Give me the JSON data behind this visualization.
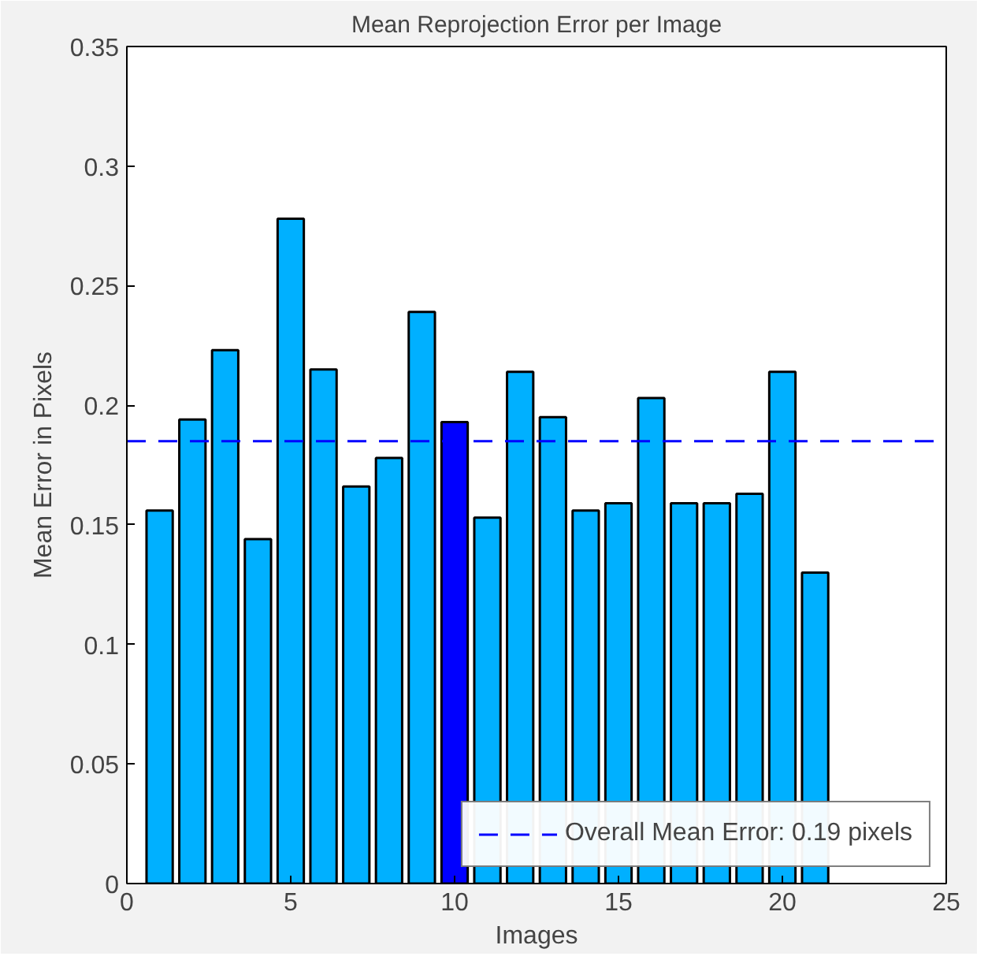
{
  "chart_data": {
    "type": "bar",
    "title": "Mean Reprojection Error per Image",
    "xlabel": "Images",
    "ylabel": "Mean Error in Pixels",
    "x": [
      1,
      2,
      3,
      4,
      5,
      6,
      7,
      8,
      9,
      10,
      11,
      12,
      13,
      14,
      15,
      16,
      17,
      18,
      19,
      20,
      21
    ],
    "values": [
      0.156,
      0.194,
      0.223,
      0.144,
      0.278,
      0.215,
      0.166,
      0.178,
      0.239,
      0.193,
      0.153,
      0.214,
      0.195,
      0.156,
      0.159,
      0.203,
      0.159,
      0.159,
      0.163,
      0.214,
      0.13
    ],
    "colors": [
      "#00b0ff",
      "#00b0ff",
      "#00b0ff",
      "#00b0ff",
      "#00b0ff",
      "#00b0ff",
      "#00b0ff",
      "#00b0ff",
      "#00b0ff",
      "#0000ff",
      "#00b0ff",
      "#00b0ff",
      "#00b0ff",
      "#00b0ff",
      "#00b0ff",
      "#00b0ff",
      "#00b0ff",
      "#00b0ff",
      "#00b0ff",
      "#00b0ff",
      "#00b0ff"
    ],
    "xlim": [
      0,
      25
    ],
    "xticks": [
      0,
      5,
      10,
      15,
      20,
      25
    ],
    "ylim": [
      0,
      0.35
    ],
    "yticks": [
      0,
      0.05,
      0.1,
      0.15,
      0.2,
      0.25,
      0.3,
      0.35
    ],
    "ref_lines": [
      {
        "axis": "y",
        "value": 0.185,
        "label": "Overall Mean Error: 0.19 pixels",
        "color": "#0000ff",
        "line_style": "dashed"
      }
    ],
    "legend": "bottom right",
    "grid": false
  }
}
